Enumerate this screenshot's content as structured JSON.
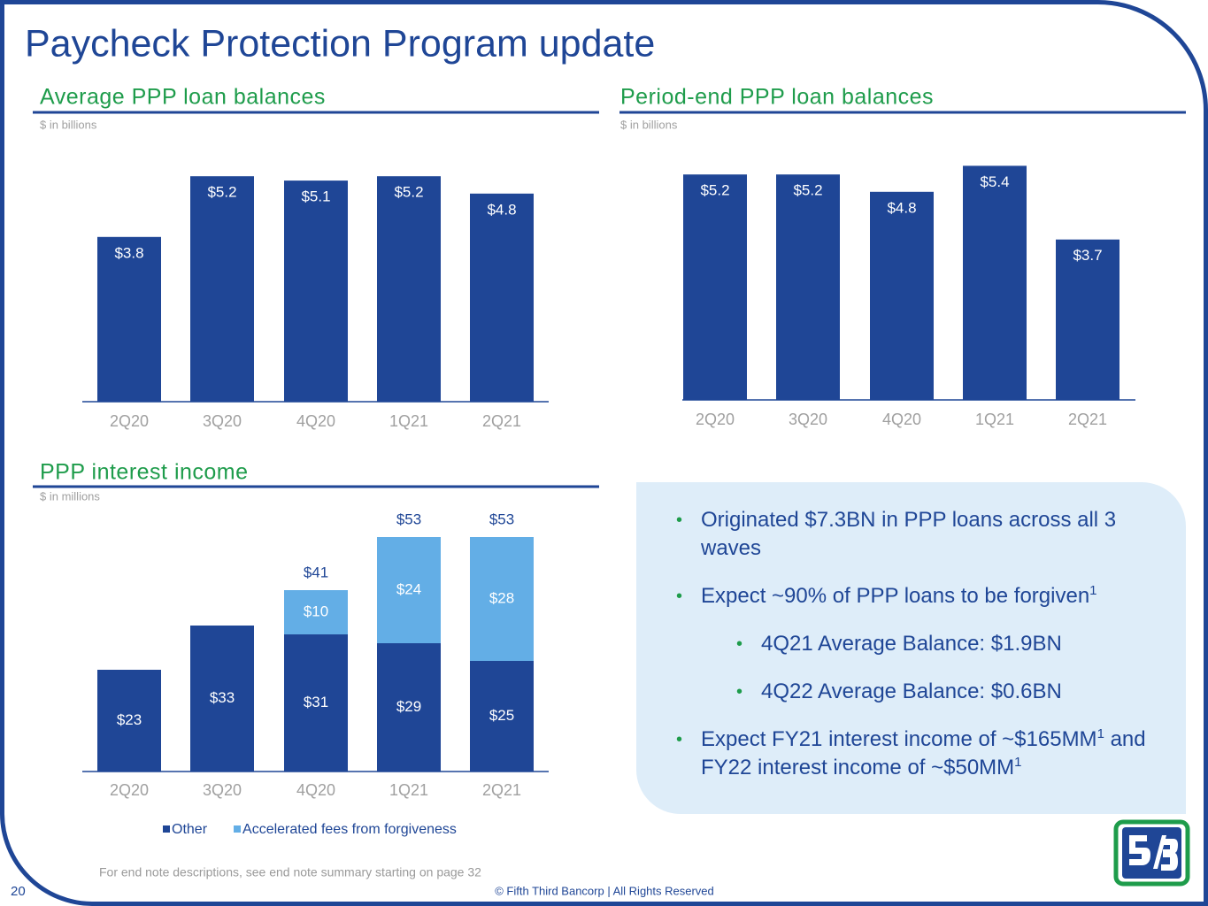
{
  "title": "Paycheck Protection Program update",
  "chart_data": [
    {
      "type": "bar",
      "title": "Average PPP loan balances",
      "subtitle": "$ in billions",
      "categories": [
        "2Q20",
        "3Q20",
        "4Q20",
        "1Q21",
        "2Q21"
      ],
      "values": [
        3.8,
        5.2,
        5.1,
        5.2,
        4.8
      ],
      "value_labels": [
        "$3.8",
        "$5.2",
        "$5.1",
        "$5.2",
        "$4.8"
      ],
      "color": "#1f4696"
    },
    {
      "type": "bar",
      "title": "Period-end PPP loan balances",
      "subtitle": "$ in billions",
      "categories": [
        "2Q20",
        "3Q20",
        "4Q20",
        "1Q21",
        "2Q21"
      ],
      "values": [
        5.2,
        5.2,
        4.8,
        5.4,
        3.7
      ],
      "value_labels": [
        "$5.2",
        "$5.2",
        "$4.8",
        "$5.4",
        "$3.7"
      ],
      "color": "#1f4696"
    },
    {
      "type": "stacked_bar",
      "title": "PPP interest income",
      "subtitle": "$ in millions",
      "categories": [
        "2Q20",
        "3Q20",
        "4Q20",
        "1Q21",
        "2Q21"
      ],
      "series": [
        {
          "name": "Other",
          "color": "#1f4696",
          "values": [
            23,
            33,
            31,
            29,
            25
          ],
          "value_labels": [
            "$23",
            "$33",
            "$31",
            "$29",
            "$25"
          ]
        },
        {
          "name": "Accelerated fees from forgiveness",
          "color": "#63aee6",
          "values": [
            null,
            null,
            10,
            24,
            28
          ],
          "value_labels": [
            null,
            null,
            "$10",
            "$24",
            "$28"
          ]
        }
      ],
      "totals": [
        null,
        null,
        41,
        53,
        53
      ],
      "total_labels": [
        null,
        null,
        "$41",
        "$53",
        "$53"
      ],
      "legend": "bottom"
    }
  ],
  "bullets": [
    {
      "level": 1,
      "parts": [
        {
          "text": "Originated $7.3BN in PPP loans across all 3 waves"
        }
      ]
    },
    {
      "level": 1,
      "parts": [
        {
          "text": "Expect ~90% of PPP loans to be forgiven"
        },
        {
          "sup": "1"
        }
      ]
    },
    {
      "level": 2,
      "parts": [
        {
          "text": "4Q21 Average Balance: $1.9BN"
        }
      ]
    },
    {
      "level": 2,
      "parts": [
        {
          "text": "4Q22 Average Balance: $0.6BN"
        }
      ]
    },
    {
      "level": 1,
      "parts": [
        {
          "text": "Expect FY21 interest income of ~$165MM"
        },
        {
          "sup": "1"
        },
        {
          "text": " and FY22 interest income of ~$50MM"
        },
        {
          "sup": "1"
        }
      ]
    }
  ],
  "footnote": "For end note descriptions, see end note summary starting on page 32",
  "page_number": "20",
  "copyright": "© Fifth Third Bancorp | All Rights Reserved"
}
